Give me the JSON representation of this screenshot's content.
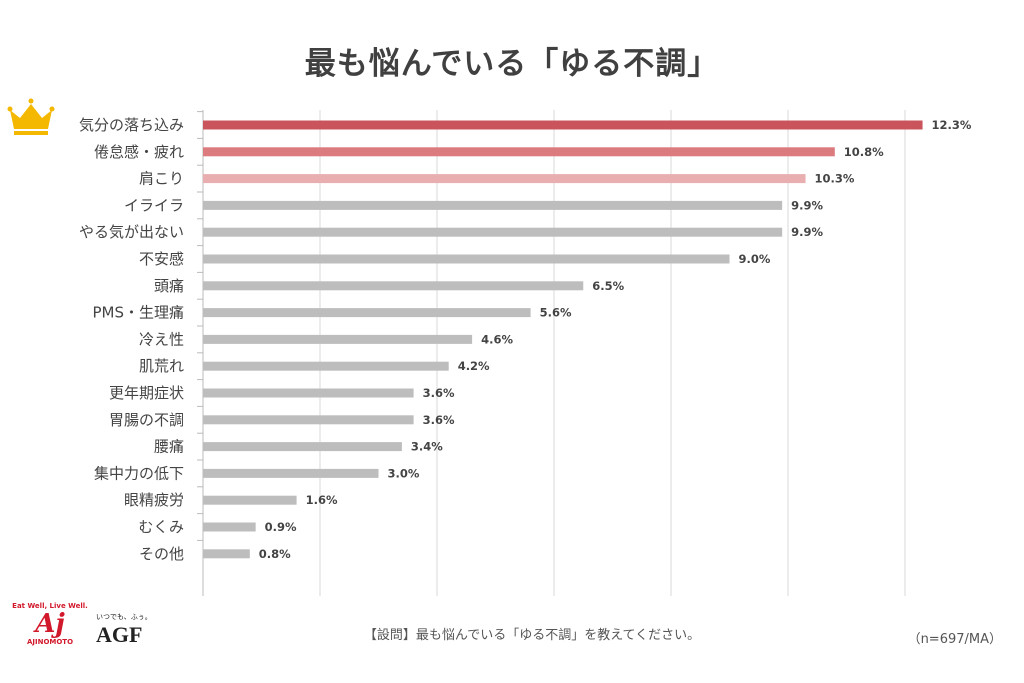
{
  "chart_data": {
    "type": "bar",
    "orientation": "horizontal",
    "title": "最も悩んでいる「ゆる不調」",
    "categories": [
      "気分の落ち込み",
      "倦怠感・疲れ",
      "肩こり",
      "イライラ",
      "やる気が出ない",
      "不安感",
      "頭痛",
      "PMS・生理痛",
      "冷え性",
      "肌荒れ",
      "更年期症状",
      "胃腸の不調",
      "腰痛",
      "集中力の低下",
      "眼精疲労",
      "むくみ",
      "その他"
    ],
    "values": [
      12.3,
      10.8,
      10.3,
      9.9,
      9.9,
      9.0,
      6.5,
      5.6,
      4.6,
      4.2,
      3.6,
      3.6,
      3.4,
      3.0,
      1.6,
      0.9,
      0.8
    ],
    "data_labels": [
      "12.3%",
      "10.8%",
      "10.3%",
      "9.9%",
      "9.9%",
      "9.0%",
      "6.5%",
      "5.6%",
      "4.6%",
      "4.2%",
      "3.6%",
      "3.6%",
      "3.4%",
      "3.0%",
      "1.6%",
      "0.9%",
      "0.8%"
    ],
    "unit": "%",
    "xlim": [
      0,
      14
    ],
    "grid": true,
    "bar_colors": [
      "#C9545C",
      "#DB7B7E",
      "#E9AEB0",
      "#BDBDBD"
    ],
    "top_marker_icon": "crown-icon",
    "crown_color": "#F5B800"
  },
  "footer": {
    "question": "【設問】最も悩んでいる「ゆる不調」を教えてください。",
    "note": "（n=697/MA）"
  },
  "logos": {
    "ajinomoto_slogan": "Eat Well, Live Well.",
    "ajinomoto_mark": "Aj",
    "ajinomoto_name": "AJINOMOTO",
    "agf_tagline": "いつでも、ふぅ。",
    "agf_mark": "AGF"
  }
}
